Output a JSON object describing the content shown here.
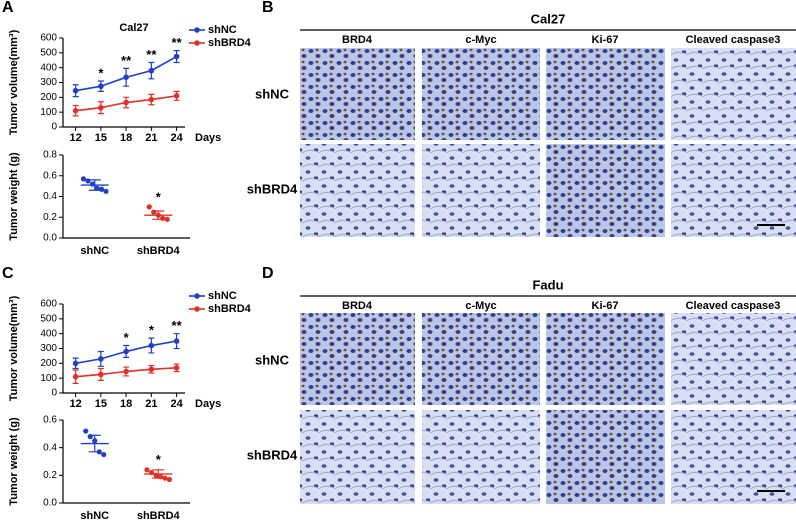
{
  "panel_labels": [
    "A",
    "B",
    "C",
    "D"
  ],
  "chart_data": [
    {
      "type": "line",
      "title": "Cal27",
      "ylabel": "Tumor volume(mm³)",
      "xlabel": "Days",
      "x": [
        12,
        15,
        18,
        21,
        24
      ],
      "xlim": [
        10.5,
        25
      ],
      "xticks": [
        12,
        15,
        18,
        21,
        24
      ],
      "ylim": [
        0,
        600
      ],
      "yticks": [
        0,
        100,
        200,
        300,
        400,
        500,
        600
      ],
      "series": [
        {
          "name": "shNC",
          "color": "#1f3fc6",
          "values": [
            245,
            275,
            335,
            380,
            475
          ],
          "errors": [
            40,
            35,
            60,
            55,
            40
          ]
        },
        {
          "name": "shBRD4",
          "color": "#e0302a",
          "values": [
            110,
            130,
            165,
            185,
            210
          ],
          "errors": [
            35,
            40,
            35,
            35,
            30
          ]
        }
      ],
      "significance": [
        null,
        "*",
        "**",
        "**",
        "**"
      ]
    },
    {
      "type": "dot",
      "ylabel": "Tumor weight (g)",
      "categories": [
        "shNC",
        "shBRD4"
      ],
      "colors": [
        "#1f3fc6",
        "#e0302a"
      ],
      "ylim": [
        0,
        0.8
      ],
      "yticks": [
        {
          "value": 0,
          "label": "0.0"
        },
        0.2,
        0.4,
        0.6,
        0.8
      ],
      "points": [
        [
          0.57,
          0.55,
          0.52,
          0.48,
          0.47,
          0.45
        ],
        [
          0.3,
          0.25,
          0.22,
          0.19,
          0.18
        ]
      ],
      "means": [
        0.51,
        0.22
      ],
      "errors": [
        0.05,
        0.04
      ],
      "significance": [
        null,
        "*"
      ]
    },
    {
      "type": "line",
      "ylabel": "Tumor volume(mm³)",
      "xlabel": "Days",
      "x": [
        12,
        15,
        18,
        21,
        24
      ],
      "xlim": [
        10.5,
        25
      ],
      "xticks": [
        12,
        15,
        18,
        21,
        24
      ],
      "ylim": [
        0,
        600
      ],
      "yticks": [
        0,
        100,
        200,
        300,
        400,
        500,
        600
      ],
      "series": [
        {
          "name": "shNC",
          "color": "#1f3fc6",
          "values": [
            200,
            230,
            280,
            320,
            350
          ],
          "errors": [
            35,
            50,
            40,
            50,
            50
          ]
        },
        {
          "name": "shBRD4",
          "color": "#e0302a",
          "values": [
            110,
            125,
            145,
            160,
            170
          ],
          "errors": [
            45,
            40,
            30,
            25,
            25
          ]
        }
      ],
      "significance": [
        null,
        null,
        "*",
        "*",
        "**"
      ]
    },
    {
      "type": "dot",
      "ylabel": "Tumor weight (g)",
      "categories": [
        "shNC",
        "shBRD4"
      ],
      "colors": [
        "#1f3fc6",
        "#e0302a"
      ],
      "ylim": [
        0,
        0.6
      ],
      "yticks": [
        {
          "value": 0,
          "label": "0.0"
        },
        0.2,
        0.4,
        0.6
      ],
      "points": [
        [
          0.52,
          0.48,
          0.45,
          0.37,
          0.35
        ],
        [
          0.24,
          0.22,
          0.2,
          0.19,
          0.18,
          0.17
        ]
      ],
      "means": [
        0.43,
        0.21
      ],
      "errors": [
        0.06,
        0.03
      ],
      "significance": [
        null,
        "*"
      ]
    }
  ],
  "image_panels": [
    {
      "title": "Cal27",
      "columns": [
        "BRD4",
        "c-Myc",
        "Ki-67",
        "Cleaved caspase3"
      ],
      "rows": [
        "shNC",
        "shBRD4"
      ]
    },
    {
      "title": "Fadu",
      "columns": [
        "BRD4",
        "c-Myc",
        "Ki-67",
        "Cleaved caspase3"
      ],
      "rows": [
        "shNC",
        "shBRD4"
      ]
    }
  ]
}
